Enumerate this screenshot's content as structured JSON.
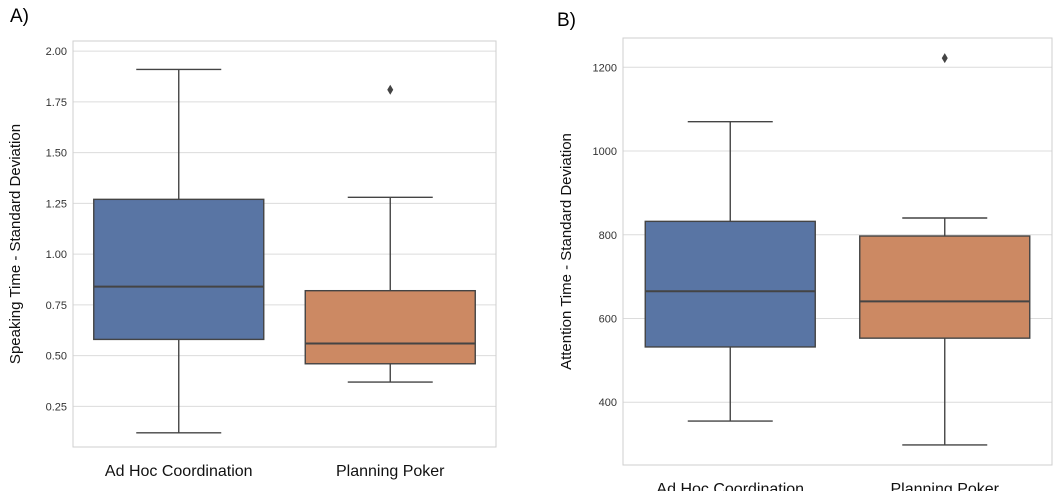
{
  "chart_data": [
    {
      "type": "box",
      "panel_label": "A)",
      "ylabel": "Speaking Time - Standard Deviation",
      "ylim": [
        0.05,
        2.05
      ],
      "yticks": [
        0.25,
        0.5,
        0.75,
        1.0,
        1.25,
        1.5,
        1.75,
        2.0
      ],
      "ytick_labels": [
        "0.25",
        "0.50",
        "0.75",
        "1.00",
        "1.25",
        "1.50",
        "1.75",
        "2.00"
      ],
      "grid": true,
      "categories": [
        "Ad Hoc Coordination",
        "Planning Poker"
      ],
      "boxes": [
        {
          "category": "Ad Hoc Coordination",
          "whisker_low": 0.12,
          "q1": 0.58,
          "median": 0.84,
          "q3": 1.27,
          "whisker_high": 1.91,
          "outliers": [],
          "color": "#5975a4"
        },
        {
          "category": "Planning Poker",
          "whisker_low": 0.37,
          "q1": 0.46,
          "median": 0.56,
          "q3": 0.82,
          "whisker_high": 1.28,
          "outliers": [
            1.81
          ],
          "color": "#cc8963"
        }
      ]
    },
    {
      "type": "box",
      "panel_label": "B)",
      "ylabel": "Attention Time - Standard Deviation",
      "ylim": [
        250,
        1270
      ],
      "yticks": [
        400,
        600,
        800,
        1000,
        1200
      ],
      "ytick_labels": [
        "400",
        "600",
        "800",
        "1000",
        "1200"
      ],
      "grid": true,
      "categories": [
        "Ad Hoc Coordination",
        "Planning Poker"
      ],
      "boxes": [
        {
          "category": "Ad Hoc Coordination",
          "whisker_low": 355,
          "q1": 532,
          "median": 665,
          "q3": 832,
          "whisker_high": 1070,
          "outliers": [],
          "color": "#5975a4"
        },
        {
          "category": "Planning Poker",
          "whisker_low": 298,
          "q1": 553,
          "median": 641,
          "q3": 797,
          "whisker_high": 840,
          "outliers": [
            1222
          ],
          "color": "#cc8963"
        }
      ]
    }
  ]
}
